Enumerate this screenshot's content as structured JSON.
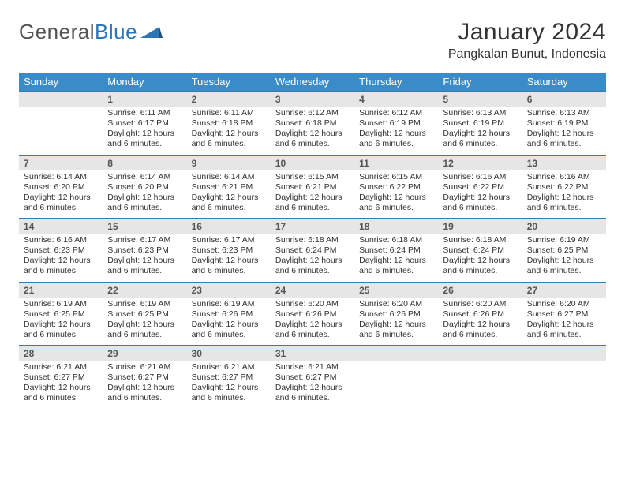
{
  "brand": {
    "part1": "General",
    "part2": "Blue"
  },
  "header": {
    "month_title": "January 2024",
    "location": "Pangkalan Bunut, Indonesia"
  },
  "colors": {
    "header_bg": "#3a8cc8",
    "header_text": "#ffffff",
    "row_divider": "#3a7aa8",
    "daynum_bg": "#e6e6e6",
    "logo_blue": "#2e75b6",
    "body_text": "#333333"
  },
  "calendar": {
    "weekdays": [
      "Sunday",
      "Monday",
      "Tuesday",
      "Wednesday",
      "Thursday",
      "Friday",
      "Saturday"
    ],
    "first_weekday_index": 1,
    "days": [
      {
        "n": 1,
        "sr": "6:11 AM",
        "ss": "6:17 PM",
        "dl": "12 hours and 6 minutes."
      },
      {
        "n": 2,
        "sr": "6:11 AM",
        "ss": "6:18 PM",
        "dl": "12 hours and 6 minutes."
      },
      {
        "n": 3,
        "sr": "6:12 AM",
        "ss": "6:18 PM",
        "dl": "12 hours and 6 minutes."
      },
      {
        "n": 4,
        "sr": "6:12 AM",
        "ss": "6:19 PM",
        "dl": "12 hours and 6 minutes."
      },
      {
        "n": 5,
        "sr": "6:13 AM",
        "ss": "6:19 PM",
        "dl": "12 hours and 6 minutes."
      },
      {
        "n": 6,
        "sr": "6:13 AM",
        "ss": "6:19 PM",
        "dl": "12 hours and 6 minutes."
      },
      {
        "n": 7,
        "sr": "6:14 AM",
        "ss": "6:20 PM",
        "dl": "12 hours and 6 minutes."
      },
      {
        "n": 8,
        "sr": "6:14 AM",
        "ss": "6:20 PM",
        "dl": "12 hours and 6 minutes."
      },
      {
        "n": 9,
        "sr": "6:14 AM",
        "ss": "6:21 PM",
        "dl": "12 hours and 6 minutes."
      },
      {
        "n": 10,
        "sr": "6:15 AM",
        "ss": "6:21 PM",
        "dl": "12 hours and 6 minutes."
      },
      {
        "n": 11,
        "sr": "6:15 AM",
        "ss": "6:22 PM",
        "dl": "12 hours and 6 minutes."
      },
      {
        "n": 12,
        "sr": "6:16 AM",
        "ss": "6:22 PM",
        "dl": "12 hours and 6 minutes."
      },
      {
        "n": 13,
        "sr": "6:16 AM",
        "ss": "6:22 PM",
        "dl": "12 hours and 6 minutes."
      },
      {
        "n": 14,
        "sr": "6:16 AM",
        "ss": "6:23 PM",
        "dl": "12 hours and 6 minutes."
      },
      {
        "n": 15,
        "sr": "6:17 AM",
        "ss": "6:23 PM",
        "dl": "12 hours and 6 minutes."
      },
      {
        "n": 16,
        "sr": "6:17 AM",
        "ss": "6:23 PM",
        "dl": "12 hours and 6 minutes."
      },
      {
        "n": 17,
        "sr": "6:18 AM",
        "ss": "6:24 PM",
        "dl": "12 hours and 6 minutes."
      },
      {
        "n": 18,
        "sr": "6:18 AM",
        "ss": "6:24 PM",
        "dl": "12 hours and 6 minutes."
      },
      {
        "n": 19,
        "sr": "6:18 AM",
        "ss": "6:24 PM",
        "dl": "12 hours and 6 minutes."
      },
      {
        "n": 20,
        "sr": "6:19 AM",
        "ss": "6:25 PM",
        "dl": "12 hours and 6 minutes."
      },
      {
        "n": 21,
        "sr": "6:19 AM",
        "ss": "6:25 PM",
        "dl": "12 hours and 6 minutes."
      },
      {
        "n": 22,
        "sr": "6:19 AM",
        "ss": "6:25 PM",
        "dl": "12 hours and 6 minutes."
      },
      {
        "n": 23,
        "sr": "6:19 AM",
        "ss": "6:26 PM",
        "dl": "12 hours and 6 minutes."
      },
      {
        "n": 24,
        "sr": "6:20 AM",
        "ss": "6:26 PM",
        "dl": "12 hours and 6 minutes."
      },
      {
        "n": 25,
        "sr": "6:20 AM",
        "ss": "6:26 PM",
        "dl": "12 hours and 6 minutes."
      },
      {
        "n": 26,
        "sr": "6:20 AM",
        "ss": "6:26 PM",
        "dl": "12 hours and 6 minutes."
      },
      {
        "n": 27,
        "sr": "6:20 AM",
        "ss": "6:27 PM",
        "dl": "12 hours and 6 minutes."
      },
      {
        "n": 28,
        "sr": "6:21 AM",
        "ss": "6:27 PM",
        "dl": "12 hours and 6 minutes."
      },
      {
        "n": 29,
        "sr": "6:21 AM",
        "ss": "6:27 PM",
        "dl": "12 hours and 6 minutes."
      },
      {
        "n": 30,
        "sr": "6:21 AM",
        "ss": "6:27 PM",
        "dl": "12 hours and 6 minutes."
      },
      {
        "n": 31,
        "sr": "6:21 AM",
        "ss": "6:27 PM",
        "dl": "12 hours and 6 minutes."
      }
    ],
    "labels": {
      "sunrise": "Sunrise: ",
      "sunset": "Sunset: ",
      "daylight": "Daylight: "
    }
  }
}
